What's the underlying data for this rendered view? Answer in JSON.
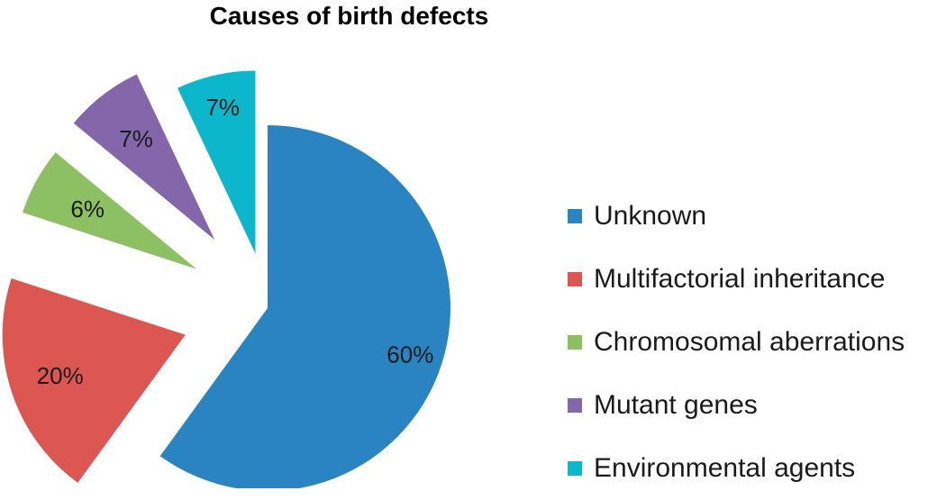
{
  "chart_data": {
    "type": "pie",
    "title": "Causes of birth defects",
    "slices": [
      {
        "name": "Unknown",
        "value": 60,
        "label": "60%",
        "color": "#2a84c1"
      },
      {
        "name": "Multifactorial inheritance",
        "value": 20,
        "label": "20%",
        "color": "#dd5752"
      },
      {
        "name": "Chromosomal aberrations",
        "value": 6,
        "label": "6%",
        "color": "#8cc062"
      },
      {
        "name": "Mutant genes",
        "value": 7,
        "label": "7%",
        "color": "#8466ab"
      },
      {
        "name": "Environmental agents",
        "value": 7,
        "label": "7%",
        "color": "#0db7cb"
      }
    ],
    "legend_position": "right",
    "exploded": true
  }
}
